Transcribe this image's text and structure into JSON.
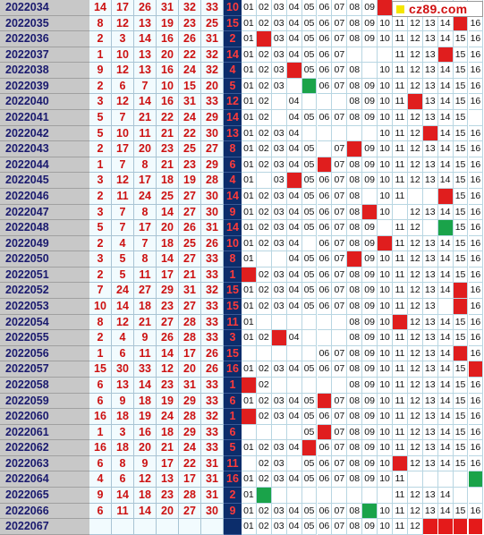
{
  "logo": {
    "text": "cz89.com"
  },
  "colors": {
    "hit": "#e01e1e",
    "repeat": "#1aa34a",
    "blue_bg": "#0c2d6b",
    "period_bg": "#c8c8c8"
  },
  "rows": [
    {
      "period": "2022034",
      "reds": [
        "14",
        "17",
        "26",
        "31",
        "32",
        "33"
      ],
      "blue": "10",
      "grid": [
        "01",
        "02",
        "03",
        "04",
        "05",
        "06",
        "07",
        "08",
        "09",
        "R",
        "",
        "",
        "",
        "",
        "",
        ""
      ]
    },
    {
      "period": "2022035",
      "reds": [
        "8",
        "12",
        "13",
        "19",
        "23",
        "25"
      ],
      "blue": "15",
      "grid": [
        "01",
        "02",
        "03",
        "04",
        "05",
        "06",
        "07",
        "08",
        "09",
        "10",
        "11",
        "12",
        "13",
        "14",
        "R",
        "16"
      ]
    },
    {
      "period": "2022036",
      "reds": [
        "2",
        "3",
        "14",
        "16",
        "26",
        "31"
      ],
      "blue": "2",
      "grid": [
        "01",
        "R",
        "03",
        "04",
        "05",
        "06",
        "07",
        "08",
        "09",
        "10",
        "11",
        "12",
        "13",
        "14",
        "15",
        "16"
      ]
    },
    {
      "period": "2022037",
      "reds": [
        "1",
        "10",
        "13",
        "20",
        "22",
        "32"
      ],
      "blue": "14",
      "grid": [
        "01",
        "02",
        "03",
        "04",
        "05",
        "06",
        "07",
        "",
        "",
        "",
        "11",
        "12",
        "13",
        "R",
        "15",
        "16"
      ]
    },
    {
      "period": "2022038",
      "reds": [
        "9",
        "12",
        "13",
        "16",
        "24",
        "32"
      ],
      "blue": "4",
      "grid": [
        "01",
        "02",
        "03",
        "R",
        "05",
        "06",
        "07",
        "08",
        "",
        "10",
        "11",
        "12",
        "13",
        "14",
        "15",
        "16"
      ]
    },
    {
      "period": "2022039",
      "reds": [
        "2",
        "6",
        "7",
        "10",
        "15",
        "20"
      ],
      "blue": "5",
      "grid": [
        "01",
        "02",
        "03",
        "",
        "G",
        "06",
        "07",
        "08",
        "09",
        "10",
        "11",
        "12",
        "13",
        "14",
        "15",
        "16"
      ]
    },
    {
      "period": "2022040",
      "reds": [
        "3",
        "12",
        "14",
        "16",
        "31",
        "33"
      ],
      "blue": "12",
      "grid": [
        "01",
        "02",
        "",
        "04",
        "",
        "",
        "",
        "08",
        "09",
        "10",
        "11",
        "R",
        "13",
        "14",
        "15",
        "16"
      ]
    },
    {
      "period": "2022041",
      "reds": [
        "5",
        "7",
        "21",
        "22",
        "24",
        "29"
      ],
      "blue": "14",
      "grid": [
        "01",
        "02",
        "",
        "04",
        "05",
        "06",
        "07",
        "08",
        "09",
        "10",
        "11",
        "12",
        "13",
        "14",
        "15",
        ""
      ]
    },
    {
      "period": "2022042",
      "reds": [
        "5",
        "10",
        "11",
        "21",
        "22",
        "30"
      ],
      "blue": "13",
      "grid": [
        "01",
        "02",
        "03",
        "04",
        "",
        "",
        "",
        "",
        "",
        "10",
        "11",
        "12",
        "R",
        "14",
        "15",
        "16"
      ]
    },
    {
      "period": "2022043",
      "reds": [
        "2",
        "17",
        "20",
        "23",
        "25",
        "27"
      ],
      "blue": "8",
      "grid": [
        "01",
        "02",
        "03",
        "04",
        "05",
        "",
        "07",
        "R",
        "09",
        "10",
        "11",
        "12",
        "13",
        "14",
        "15",
        "16"
      ]
    },
    {
      "period": "2022044",
      "reds": [
        "1",
        "7",
        "8",
        "21",
        "23",
        "29"
      ],
      "blue": "6",
      "grid": [
        "01",
        "02",
        "03",
        "04",
        "05",
        "R",
        "07",
        "08",
        "09",
        "10",
        "11",
        "12",
        "13",
        "14",
        "15",
        "16"
      ]
    },
    {
      "period": "2022045",
      "reds": [
        "3",
        "12",
        "17",
        "18",
        "19",
        "28"
      ],
      "blue": "4",
      "grid": [
        "01",
        "",
        "03",
        "R",
        "05",
        "06",
        "07",
        "08",
        "09",
        "10",
        "11",
        "12",
        "13",
        "14",
        "15",
        "16"
      ]
    },
    {
      "period": "2022046",
      "reds": [
        "2",
        "11",
        "24",
        "25",
        "27",
        "30"
      ],
      "blue": "14",
      "grid": [
        "01",
        "02",
        "03",
        "04",
        "05",
        "06",
        "07",
        "08",
        "",
        "10",
        "11",
        "",
        "",
        "R",
        "15",
        "16"
      ]
    },
    {
      "period": "2022047",
      "reds": [
        "3",
        "7",
        "8",
        "14",
        "27",
        "30"
      ],
      "blue": "9",
      "grid": [
        "01",
        "02",
        "03",
        "04",
        "05",
        "06",
        "07",
        "08",
        "R",
        "10",
        "",
        "12",
        "13",
        "14",
        "15",
        "16"
      ]
    },
    {
      "period": "2022048",
      "reds": [
        "5",
        "7",
        "17",
        "20",
        "26",
        "31"
      ],
      "blue": "14",
      "grid": [
        "01",
        "02",
        "03",
        "04",
        "05",
        "06",
        "07",
        "08",
        "09",
        "",
        "11",
        "12",
        "",
        "G",
        "15",
        "16"
      ]
    },
    {
      "period": "2022049",
      "reds": [
        "2",
        "4",
        "7",
        "18",
        "25",
        "26"
      ],
      "blue": "10",
      "grid": [
        "01",
        "02",
        "03",
        "04",
        "",
        "06",
        "07",
        "08",
        "09",
        "R",
        "11",
        "12",
        "13",
        "14",
        "15",
        "16"
      ]
    },
    {
      "period": "2022050",
      "reds": [
        "3",
        "5",
        "8",
        "14",
        "27",
        "33"
      ],
      "blue": "8",
      "grid": [
        "01",
        "",
        "",
        "04",
        "05",
        "06",
        "07",
        "R",
        "09",
        "10",
        "11",
        "12",
        "13",
        "14",
        "15",
        "16"
      ]
    },
    {
      "period": "2022051",
      "reds": [
        "2",
        "5",
        "11",
        "17",
        "21",
        "33"
      ],
      "blue": "1",
      "grid": [
        "R",
        "02",
        "03",
        "04",
        "05",
        "06",
        "07",
        "08",
        "09",
        "10",
        "11",
        "12",
        "13",
        "14",
        "15",
        "16"
      ]
    },
    {
      "period": "2022052",
      "reds": [
        "7",
        "24",
        "27",
        "29",
        "31",
        "32"
      ],
      "blue": "15",
      "grid": [
        "01",
        "02",
        "03",
        "04",
        "05",
        "06",
        "07",
        "08",
        "09",
        "10",
        "11",
        "12",
        "13",
        "14",
        "R",
        "16"
      ]
    },
    {
      "period": "2022053",
      "reds": [
        "10",
        "14",
        "18",
        "23",
        "27",
        "33"
      ],
      "blue": "15",
      "grid": [
        "01",
        "02",
        "03",
        "04",
        "05",
        "06",
        "07",
        "08",
        "09",
        "10",
        "11",
        "12",
        "13",
        "",
        "R",
        "16"
      ]
    },
    {
      "period": "2022054",
      "reds": [
        "8",
        "12",
        "21",
        "27",
        "28",
        "33"
      ],
      "blue": "11",
      "grid": [
        "01",
        "",
        "",
        "",
        "",
        "",
        "",
        "08",
        "09",
        "10",
        "R",
        "12",
        "13",
        "14",
        "15",
        "16"
      ]
    },
    {
      "period": "2022055",
      "reds": [
        "2",
        "4",
        "9",
        "26",
        "28",
        "33"
      ],
      "blue": "3",
      "grid": [
        "01",
        "02",
        "R",
        "04",
        "",
        "",
        "",
        "08",
        "09",
        "10",
        "11",
        "12",
        "13",
        "14",
        "15",
        "16"
      ]
    },
    {
      "period": "2022056",
      "reds": [
        "1",
        "6",
        "11",
        "14",
        "17",
        "26"
      ],
      "blue": "15",
      "grid": [
        "",
        "",
        "",
        "",
        "",
        "06",
        "07",
        "08",
        "09",
        "10",
        "11",
        "12",
        "13",
        "14",
        "R",
        "16"
      ]
    },
    {
      "period": "2022057",
      "reds": [
        "15",
        "30",
        "33",
        "12",
        "20",
        "26"
      ],
      "blue": "16",
      "grid": [
        "01",
        "02",
        "03",
        "04",
        "05",
        "06",
        "07",
        "08",
        "09",
        "10",
        "11",
        "12",
        "13",
        "14",
        "15",
        "R"
      ]
    },
    {
      "period": "2022058",
      "reds": [
        "6",
        "13",
        "14",
        "23",
        "31",
        "33"
      ],
      "blue": "1",
      "grid": [
        "R",
        "02",
        "",
        "",
        "",
        "",
        "",
        "08",
        "09",
        "10",
        "11",
        "12",
        "13",
        "14",
        "15",
        "16"
      ]
    },
    {
      "period": "2022059",
      "reds": [
        "6",
        "9",
        "18",
        "19",
        "29",
        "33"
      ],
      "blue": "6",
      "grid": [
        "01",
        "02",
        "03",
        "04",
        "05",
        "R",
        "07",
        "08",
        "09",
        "10",
        "11",
        "12",
        "13",
        "14",
        "15",
        "16"
      ]
    },
    {
      "period": "2022060",
      "reds": [
        "16",
        "18",
        "19",
        "24",
        "28",
        "32"
      ],
      "blue": "1",
      "grid": [
        "R",
        "02",
        "03",
        "04",
        "05",
        "06",
        "07",
        "08",
        "09",
        "10",
        "11",
        "12",
        "13",
        "14",
        "15",
        "16"
      ]
    },
    {
      "period": "2022061",
      "reds": [
        "1",
        "3",
        "16",
        "18",
        "29",
        "33"
      ],
      "blue": "6",
      "grid": [
        "",
        "",
        "",
        "",
        "05",
        "R",
        "07",
        "08",
        "09",
        "10",
        "11",
        "12",
        "13",
        "14",
        "15",
        "16"
      ]
    },
    {
      "period": "2022062",
      "reds": [
        "16",
        "18",
        "20",
        "21",
        "24",
        "33"
      ],
      "blue": "5",
      "grid": [
        "01",
        "02",
        "03",
        "04",
        "R",
        "06",
        "07",
        "08",
        "09",
        "10",
        "11",
        "12",
        "13",
        "14",
        "15",
        "16"
      ]
    },
    {
      "period": "2022063",
      "reds": [
        "6",
        "8",
        "9",
        "17",
        "22",
        "31"
      ],
      "blue": "11",
      "grid": [
        "",
        "02",
        "03",
        "",
        "05",
        "06",
        "07",
        "08",
        "09",
        "10",
        "R",
        "12",
        "13",
        "14",
        "15",
        "16"
      ]
    },
    {
      "period": "2022064",
      "reds": [
        "4",
        "6",
        "12",
        "13",
        "17",
        "31"
      ],
      "blue": "16",
      "grid": [
        "01",
        "02",
        "03",
        "04",
        "05",
        "06",
        "07",
        "08",
        "09",
        "10",
        "11",
        "",
        "",
        "",
        "",
        "G"
      ]
    },
    {
      "period": "2022065",
      "reds": [
        "9",
        "14",
        "18",
        "23",
        "28",
        "31"
      ],
      "blue": "2",
      "grid": [
        "01",
        "G",
        "",
        "",
        "",
        "",
        "",
        "",
        "",
        "",
        "11",
        "12",
        "13",
        "14",
        "",
        ""
      ]
    },
    {
      "period": "2022066",
      "reds": [
        "6",
        "11",
        "14",
        "20",
        "27",
        "30"
      ],
      "blue": "9",
      "grid": [
        "01",
        "02",
        "03",
        "04",
        "05",
        "06",
        "07",
        "08",
        "G",
        "10",
        "11",
        "12",
        "13",
        "14",
        "15",
        "16"
      ]
    },
    {
      "period": "2022067",
      "reds": [
        "",
        "",
        "",
        "",
        "",
        ""
      ],
      "blue": "",
      "grid": [
        "01",
        "02",
        "03",
        "04",
        "05",
        "06",
        "07",
        "08",
        "09",
        "10",
        "11",
        "12",
        "P",
        "P",
        "P",
        "P"
      ]
    }
  ]
}
